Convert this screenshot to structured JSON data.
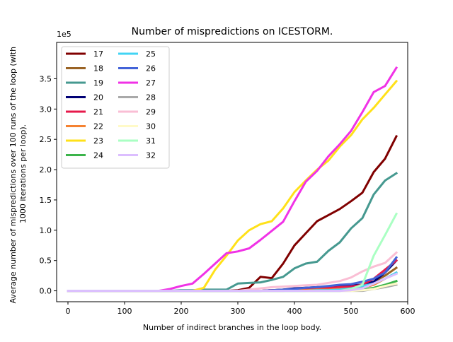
{
  "chart_data": {
    "type": "line",
    "title": "Number of mispredictions on ICESTORM.",
    "xlabel": "Number of indirect branches in the loop body.",
    "ylabel_lines": [
      "Average number of mispredictions over 100 runs of the loop (with",
      "1000 iterations per loop)."
    ],
    "offset_label": "1e5",
    "xlim": [
      -20,
      600
    ],
    "ylim": [
      -0.18,
      4.1
    ],
    "xticks": [
      0,
      100,
      200,
      300,
      400,
      500,
      600
    ],
    "xtick_labels": [
      "0",
      "100",
      "200",
      "300",
      "400",
      "500",
      "600"
    ],
    "yticks": [
      0,
      0.5,
      1.0,
      1.5,
      2.0,
      2.5,
      3.0,
      3.5
    ],
    "ytick_labels": [
      "0.0",
      "0.5",
      "1.0",
      "1.5",
      "2.0",
      "2.5",
      "3.0",
      "3.5"
    ],
    "grid": false,
    "legend_position": "upper-left",
    "legend_columns": 2,
    "x": [
      0,
      20,
      40,
      60,
      80,
      100,
      120,
      140,
      160,
      180,
      200,
      220,
      240,
      260,
      280,
      300,
      320,
      340,
      360,
      380,
      400,
      420,
      440,
      460,
      480,
      500,
      520,
      540,
      560,
      580
    ],
    "series": [
      {
        "name": "17",
        "color": "#800000",
        "values": [
          0,
          0,
          0,
          0,
          0,
          0,
          0,
          0,
          0,
          0,
          0,
          0,
          0,
          0,
          0,
          0.01,
          0.05,
          0.23,
          0.21,
          0.45,
          0.75,
          0.95,
          1.15,
          1.25,
          1.35,
          1.48,
          1.62,
          1.96,
          2.18,
          2.55
        ]
      },
      {
        "name": "18",
        "color": "#9a6324",
        "values": [
          0,
          0,
          0,
          0,
          0,
          0,
          0,
          0,
          0,
          0,
          0,
          0,
          0,
          0,
          0,
          0,
          0,
          0,
          0.01,
          0.02,
          0.03,
          0.04,
          0.05,
          0.06,
          0.07,
          0.08,
          0.1,
          0.15,
          0.25,
          0.38
        ]
      },
      {
        "name": "19",
        "color": "#469990",
        "values": [
          0,
          0,
          0,
          0,
          0,
          0,
          0,
          0,
          0,
          0,
          0.01,
          0.01,
          0.02,
          0.02,
          0.02,
          0.12,
          0.13,
          0.14,
          0.18,
          0.23,
          0.37,
          0.45,
          0.48,
          0.66,
          0.8,
          1.03,
          1.2,
          1.59,
          1.82,
          1.94
        ]
      },
      {
        "name": "20",
        "color": "#000075",
        "values": [
          0,
          0,
          0,
          0,
          0,
          0,
          0,
          0,
          0,
          0,
          0,
          0,
          0,
          0,
          0,
          0,
          0,
          0,
          0.01,
          0.02,
          0.04,
          0.05,
          0.06,
          0.07,
          0.08,
          0.09,
          0.1,
          0.15,
          0.3,
          0.5
        ]
      },
      {
        "name": "21",
        "color": "#e6194b",
        "values": [
          0,
          0,
          0,
          0,
          0,
          0,
          0,
          0,
          0,
          0,
          0,
          0,
          0,
          0,
          0,
          0,
          0,
          0,
          0.01,
          0.01,
          0.02,
          0.03,
          0.04,
          0.05,
          0.06,
          0.07,
          0.1,
          0.2,
          0.35,
          0.5
        ]
      },
      {
        "name": "22",
        "color": "#f58231",
        "values": [
          0,
          0,
          0,
          0,
          0,
          0,
          0,
          0,
          0,
          0,
          0,
          0,
          0,
          0,
          0,
          0,
          0,
          0,
          0,
          0,
          0.01,
          0.01,
          0.02,
          0.02,
          0.03,
          0.04,
          0.05,
          0.1,
          0.2,
          0.3
        ]
      },
      {
        "name": "23",
        "color": "#ffe119",
        "values": [
          0,
          0,
          0,
          0,
          0,
          0,
          0,
          0,
          0,
          0,
          0,
          0,
          0.05,
          0.35,
          0.58,
          0.83,
          1.0,
          1.1,
          1.15,
          1.36,
          1.63,
          1.82,
          2.0,
          2.15,
          2.38,
          2.57,
          2.83,
          3.02,
          3.24,
          3.46
        ]
      },
      {
        "name": "24",
        "color": "#3cb44b",
        "values": [
          0,
          0,
          0,
          0,
          0,
          0,
          0,
          0,
          0,
          0,
          0,
          0,
          0,
          0,
          0,
          0,
          0,
          0,
          0,
          0,
          0,
          0,
          0,
          0,
          0,
          0.01,
          0.02,
          0.05,
          0.1,
          0.16
        ]
      },
      {
        "name": "25",
        "color": "#42d4f4",
        "values": [
          0,
          0,
          0,
          0,
          0,
          0,
          0,
          0,
          0,
          0,
          0,
          0,
          0,
          0,
          0,
          0,
          0,
          0,
          0,
          0,
          0,
          0,
          0.01,
          0.01,
          0.02,
          0.04,
          0.08,
          0.12,
          0.2,
          0.3
        ]
      },
      {
        "name": "26",
        "color": "#4363d8",
        "values": [
          0,
          0,
          0,
          0,
          0,
          0,
          0,
          0,
          0,
          0,
          0,
          0,
          0,
          0,
          0,
          0,
          0,
          0,
          0.01,
          0.02,
          0.03,
          0.05,
          0.06,
          0.08,
          0.1,
          0.11,
          0.15,
          0.2,
          0.3,
          0.55
        ]
      },
      {
        "name": "27",
        "color": "#f032e6",
        "values": [
          0,
          0,
          0,
          0,
          0,
          0,
          0,
          0,
          0,
          0.03,
          0.08,
          0.12,
          0.28,
          0.45,
          0.62,
          0.65,
          0.7,
          0.84,
          0.99,
          1.14,
          1.48,
          1.8,
          1.98,
          2.22,
          2.42,
          2.64,
          2.95,
          3.28,
          3.38,
          3.68
        ]
      },
      {
        "name": "28",
        "color": "#a9a9a9",
        "values": [
          0,
          0,
          0,
          0,
          0,
          0,
          0,
          0,
          0,
          0,
          0,
          0,
          0,
          0,
          0,
          0,
          0,
          0,
          0,
          0,
          0,
          0,
          0,
          0,
          0,
          0,
          0,
          0.03,
          0.06,
          0.1
        ]
      },
      {
        "name": "29",
        "color": "#fabed4",
        "values": [
          0,
          0,
          0,
          0,
          0,
          0,
          0,
          0,
          0,
          0,
          0,
          0,
          0,
          0,
          0,
          0,
          0.02,
          0.04,
          0.06,
          0.07,
          0.08,
          0.09,
          0.1,
          0.13,
          0.16,
          0.22,
          0.32,
          0.4,
          0.46,
          0.63
        ]
      },
      {
        "name": "30",
        "color": "#fffac8",
        "values": [
          0,
          0,
          0,
          0,
          0,
          0,
          0,
          0,
          0,
          0,
          0,
          0,
          0,
          0,
          0,
          0,
          0,
          0,
          0,
          0,
          0,
          0,
          0,
          0,
          0,
          0,
          0.01,
          0.03,
          0.08,
          0.12
        ]
      },
      {
        "name": "31",
        "color": "#aaffc3",
        "values": [
          0,
          0,
          0,
          0,
          0,
          0,
          0,
          0,
          0,
          0,
          0,
          0,
          0,
          0,
          0,
          0,
          0,
          0,
          0,
          0,
          0,
          0,
          0,
          0,
          0,
          0.03,
          0.1,
          0.58,
          0.92,
          1.27
        ]
      },
      {
        "name": "32",
        "color": "#dcbeff",
        "values": [
          0,
          0,
          0,
          0,
          0,
          0,
          0,
          0,
          0,
          0,
          0,
          0,
          0,
          0,
          0,
          0,
          0,
          0,
          0,
          0,
          0,
          0,
          0,
          0,
          0,
          0.01,
          0.04,
          0.12,
          0.2,
          0.28
        ]
      }
    ]
  }
}
